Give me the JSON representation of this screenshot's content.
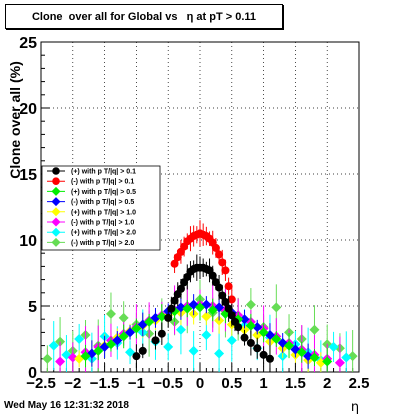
{
  "title": "Clone  over all for Global vs   η at pT > 0.11",
  "footer_date": "Wed May 16 12:31:32 2018",
  "chart_data": {
    "type": "scatter",
    "xlabel": "η",
    "ylabel": "Clone  over all (%)",
    "xlim": [
      -2.5,
      2.5
    ],
    "ylim": [
      0,
      25
    ],
    "x_ticks": [
      -2.5,
      -2,
      -1.5,
      -1,
      -0.5,
      0,
      0.5,
      1,
      1.5,
      2,
      2.5
    ],
    "x_tick_labels": [
      "−2.5",
      "−2",
      "−1.5",
      "−1",
      "−0.5",
      "0",
      "0.5",
      "1",
      "1.5",
      "2",
      "2.5"
    ],
    "y_ticks": [
      0,
      5,
      10,
      15,
      20,
      25
    ],
    "y_tick_labels": [
      "0",
      "5",
      "10",
      "15",
      "20",
      "25"
    ],
    "grid": true,
    "legend_position": "left-middle",
    "series": [
      {
        "name": "(+) with p T/|q| > 0.1",
        "color": "#000000",
        "x": [
          -0.4,
          -0.35,
          -0.3,
          -0.25,
          -0.2,
          -0.15,
          -0.1,
          -0.05,
          0,
          0.05,
          0.1,
          0.15,
          0.2,
          0.25,
          0.3,
          0.35,
          0.4,
          0.45,
          0.5,
          0.55,
          0.6,
          -0.45,
          -0.5,
          0.7,
          0.8,
          0.9,
          1.0,
          1.1,
          -0.6,
          -0.7,
          -0.9,
          -1.0
        ],
        "y": [
          5.4,
          5.9,
          6.3,
          6.8,
          7.2,
          7.6,
          7.8,
          7.9,
          7.9,
          7.9,
          7.8,
          7.7,
          7.3,
          6.8,
          6.4,
          5.8,
          5.3,
          4.8,
          4.3,
          3.8,
          3.4,
          4.8,
          4.1,
          2.6,
          2.2,
          1.8,
          1.3,
          1.0,
          2.9,
          2.4,
          1.6,
          1.2
        ]
      },
      {
        "name": "(-) with p T/|q| > 0.1",
        "color": "#ff0000",
        "x": [
          -0.4,
          -0.35,
          -0.3,
          -0.25,
          -0.2,
          -0.15,
          -0.1,
          -0.05,
          0,
          0.05,
          0.1,
          0.15,
          0.2,
          0.25,
          0.3,
          0.35,
          0.4,
          0.45,
          0.5
        ],
        "y": [
          8.2,
          8.7,
          9.1,
          9.5,
          9.9,
          10.1,
          10.3,
          10.4,
          10.5,
          10.4,
          10.3,
          10.1,
          9.8,
          9.4,
          8.9,
          8.3,
          7.7,
          6.5,
          5.5
        ]
      },
      {
        "name": "(+) with p T/|q| > 0.5",
        "color": "#00ee00",
        "x": [
          -1.8,
          -1.6,
          -1.4,
          -1.2,
          -1.0,
          -0.8,
          -0.6,
          -0.4,
          -0.2,
          0,
          0.2,
          0.4,
          0.6,
          0.8,
          1.0,
          1.2,
          1.4,
          1.6,
          1.8,
          2.0
        ],
        "y": [
          1.2,
          1.6,
          2.1,
          2.7,
          3.3,
          3.8,
          4.2,
          4.6,
          4.8,
          4.9,
          4.7,
          4.4,
          4.0,
          3.5,
          3.0,
          2.5,
          2.0,
          1.5,
          1.1,
          0.8
        ]
      },
      {
        "name": "(-) with p T/|q| > 0.5",
        "color": "#0000ff",
        "x": [
          -1.7,
          -1.5,
          -1.3,
          -1.1,
          -0.9,
          -0.7,
          -0.5,
          -0.3,
          -0.1,
          0.1,
          0.3,
          0.5,
          0.7,
          0.9,
          1.1,
          1.3,
          1.5,
          1.7
        ],
        "y": [
          1.4,
          1.9,
          2.4,
          3.0,
          3.6,
          4.1,
          4.6,
          4.9,
          5.1,
          5.1,
          4.9,
          4.5,
          4.0,
          3.4,
          2.8,
          2.2,
          1.7,
          1.2
        ]
      },
      {
        "name": "(+) with p T/|q| > 1.0",
        "color": "#ffff00",
        "x": [
          -1.9,
          -1.7,
          -1.5,
          -1.3,
          -1.1,
          -0.9,
          -0.7,
          -0.5,
          -0.3,
          -0.1,
          0.1,
          0.3,
          0.5,
          0.7,
          0.9,
          1.1,
          1.3,
          1.5,
          1.7,
          1.9
        ],
        "y": [
          1.0,
          1.4,
          2.0,
          2.6,
          3.1,
          3.5,
          3.9,
          4.3,
          4.5,
          4.4,
          4.2,
          3.9,
          3.6,
          3.2,
          2.8,
          2.3,
          1.8,
          1.3,
          0.9,
          0.7
        ]
      },
      {
        "name": "(-) with p T/|q| > 1.0",
        "color": "#ff00ff",
        "x": [
          -2.2,
          -2.0,
          -1.8,
          -1.6,
          -1.4,
          -1.2,
          -1.0,
          -0.8,
          -0.6,
          -0.4,
          -0.2,
          0,
          0.2,
          0.4,
          0.6,
          0.8,
          1.0,
          1.2,
          1.4,
          1.6,
          1.8,
          2.0,
          2.2
        ],
        "y": [
          0.8,
          1.1,
          1.5,
          1.9,
          2.4,
          2.9,
          3.4,
          3.9,
          4.3,
          4.7,
          5.0,
          5.1,
          5.0,
          4.7,
          4.3,
          3.8,
          3.3,
          2.7,
          2.2,
          1.7,
          1.3,
          1.0,
          0.7
        ]
      },
      {
        "name": "(+) with p T/|q| > 2.0",
        "color": "#00ffff",
        "x": [
          -2.3,
          -2.1,
          -1.9,
          -1.7,
          -1.5,
          -1.3,
          -1.1,
          -0.9,
          -0.7,
          -0.5,
          -0.3,
          -0.1,
          0.1,
          0.3,
          0.5,
          0.7,
          0.9,
          1.1,
          1.3,
          1.5,
          1.7,
          1.9,
          2.1,
          2.3
        ],
        "y": [
          2.0,
          1.3,
          2.5,
          1.0,
          2.7,
          2.2,
          1.5,
          3.0,
          2.3,
          1.9,
          3.2,
          1.6,
          2.8,
          1.4,
          2.4,
          3.5,
          1.8,
          2.6,
          1.2,
          2.1,
          1.5,
          0.9,
          1.9,
          1.1
        ]
      },
      {
        "name": "(-) with p T/|q| > 2.0",
        "color": "#66dd55",
        "x": [
          -2.4,
          -2.2,
          -2.0,
          -1.8,
          -1.6,
          -1.4,
          -1.2,
          -1.0,
          -0.8,
          -0.6,
          -0.4,
          -0.2,
          0,
          0.2,
          0.4,
          0.6,
          0.8,
          1.0,
          1.2,
          1.4,
          1.6,
          1.8,
          2.0,
          2.2,
          2.4
        ],
        "y": [
          1.0,
          2.3,
          1.6,
          2.8,
          2.0,
          4.4,
          4.1,
          3.6,
          2.9,
          4.2,
          3.8,
          4.8,
          5.5,
          4.5,
          4.6,
          4.0,
          5.1,
          3.4,
          4.9,
          3.0,
          2.5,
          3.2,
          2.1,
          1.8,
          1.2
        ]
      }
    ]
  }
}
